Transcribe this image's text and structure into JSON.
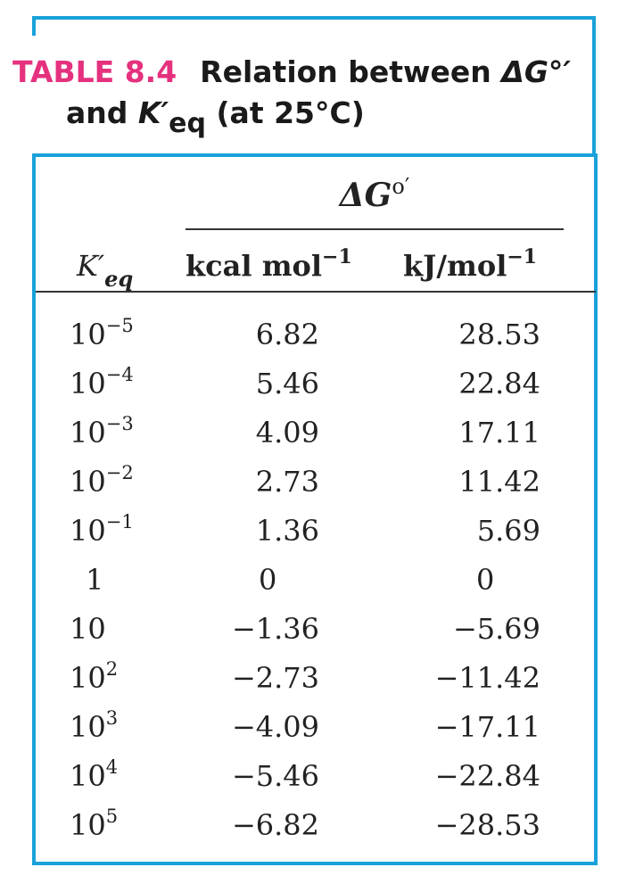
{
  "caption": {
    "table_number": "TABLE 8.4",
    "title_part1": "Relation between ",
    "delta_g": "ΔG°′",
    "title_part2": "and ",
    "k_symbol": "K′",
    "k_sub": "eq",
    "title_part3": " (at 25°C)"
  },
  "header": {
    "group_label": "ΔG",
    "group_sup": "o′",
    "k_col": "K′",
    "k_col_sub": "eq",
    "kcal_col": "kcal mol",
    "kcal_col_sup": "−1",
    "kj_col": "kJ/mol",
    "kj_col_sup": "−1"
  },
  "rows": [
    {
      "k_base": "10",
      "k_exp": "−5",
      "kcal": "6.82",
      "kj": "28.53"
    },
    {
      "k_base": "10",
      "k_exp": "−4",
      "kcal": "5.46",
      "kj": "22.84"
    },
    {
      "k_base": "10",
      "k_exp": "−3",
      "kcal": "4.09",
      "kj": "17.11"
    },
    {
      "k_base": "10",
      "k_exp": "−2",
      "kcal": "2.73",
      "kj": "11.42"
    },
    {
      "k_base": "10",
      "k_exp": "−1",
      "kcal": "1.36",
      "kj": "5.69"
    },
    {
      "k_base": "1",
      "k_exp": "",
      "kcal": "0",
      "kj": "0"
    },
    {
      "k_base": "10",
      "k_exp": "",
      "kcal": "−1.36",
      "kj": "−5.69"
    },
    {
      "k_base": "10",
      "k_exp": "2",
      "kcal": "−2.73",
      "kj": "−11.42"
    },
    {
      "k_base": "10",
      "k_exp": "3",
      "kcal": "−4.09",
      "kj": "−17.11"
    },
    {
      "k_base": "10",
      "k_exp": "4",
      "kcal": "−5.46",
      "kj": "−22.84"
    },
    {
      "k_base": "10",
      "k_exp": "5",
      "kcal": "−6.82",
      "kj": "−28.53"
    }
  ],
  "colors": {
    "frame": "#1aa1d9",
    "table_number": "#e5317e",
    "text": "#1a1a1a"
  }
}
